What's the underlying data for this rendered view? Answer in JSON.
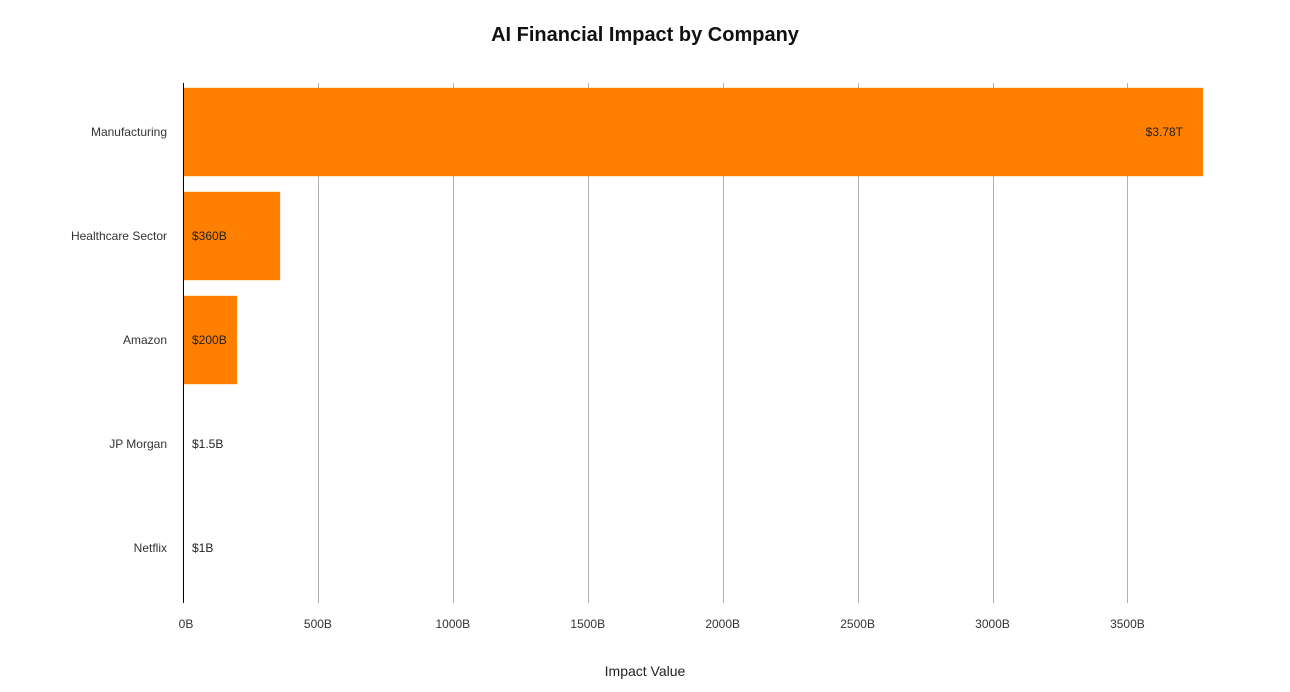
{
  "chart_data": {
    "type": "bar",
    "orientation": "horizontal",
    "title": "AI Financial Impact by Company",
    "xlabel": "Impact Value",
    "ylabel": "",
    "categories": [
      "Manufacturing",
      "Healthcare Sector",
      "Amazon",
      "JP Morgan",
      "Netflix"
    ],
    "values": [
      3780,
      360,
      200,
      1.5,
      1
    ],
    "value_units": "B",
    "data_labels": [
      "$3.78T",
      "$360B",
      "$200B",
      "$1.5B",
      "$1B"
    ],
    "x_ticks": [
      0,
      500,
      1000,
      1500,
      2000,
      2500,
      3000,
      3500
    ],
    "x_tick_labels": [
      "0B",
      "500B",
      "1000B",
      "1500B",
      "2000B",
      "2500B",
      "3000B",
      "3500B"
    ],
    "xlim": [
      0,
      3780
    ],
    "grid": "vertical",
    "legend": "none",
    "bar_color": "#ff7f00"
  }
}
